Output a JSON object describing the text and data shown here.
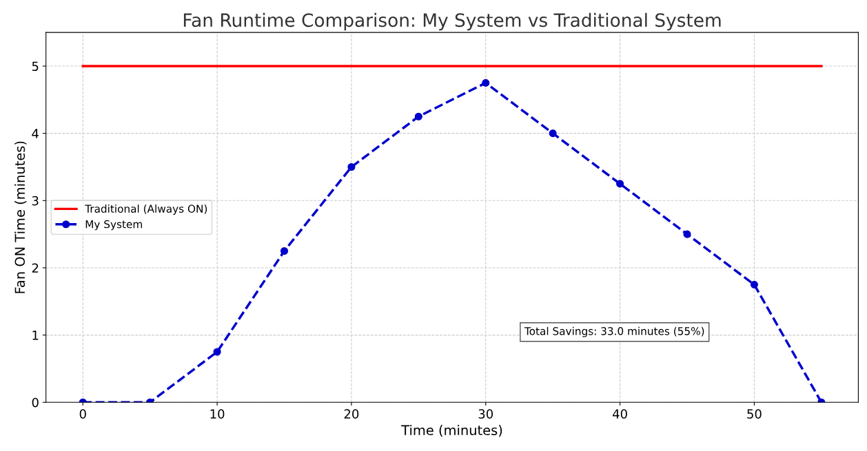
{
  "chart_data": {
    "type": "line",
    "title": "Fan Runtime Comparison: My System vs Traditional System",
    "xlabel": "Time (minutes)",
    "ylabel": "Fan ON Time (minutes)",
    "x": [
      0,
      5,
      10,
      15,
      20,
      25,
      30,
      35,
      40,
      45,
      50,
      55
    ],
    "series": [
      {
        "name": "Traditional (Always ON)",
        "color": "#ff0000",
        "values": [
          5,
          5,
          5,
          5,
          5,
          5,
          5,
          5,
          5,
          5,
          5,
          5
        ],
        "marker": "none",
        "line_style": "solid"
      },
      {
        "name": "My System",
        "color": "#0000cc",
        "values": [
          0,
          0,
          0.75,
          2.25,
          3.5,
          4.25,
          4.75,
          4.0,
          3.25,
          2.5,
          1.75,
          0
        ],
        "marker": "circle",
        "line_style": "dashed"
      }
    ],
    "xlim": [
      -2.75,
      57.75
    ],
    "ylim": [
      0,
      5.5
    ],
    "xticks": [
      0,
      10,
      20,
      30,
      40,
      50
    ],
    "yticks": [
      0,
      1,
      2,
      3,
      4,
      5
    ],
    "grid": true,
    "legend": "center left",
    "annotations": [
      "Total Savings: 33.0 minutes (55%)"
    ]
  }
}
